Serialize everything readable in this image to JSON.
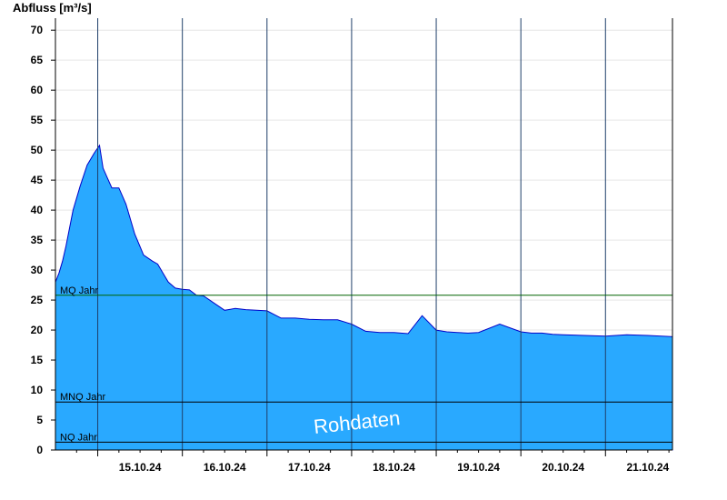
{
  "chart_data": {
    "type": "area",
    "title": "",
    "ylabel": "Abfluss [m³/s]",
    "xlabel": "",
    "ylim": [
      0,
      72
    ],
    "yticks": [
      0,
      5,
      10,
      15,
      20,
      25,
      30,
      35,
      40,
      45,
      50,
      55,
      60,
      65,
      70
    ],
    "x_range": [
      "14.10.24 12:00",
      "21.10.24 19:00"
    ],
    "x_tick_labels": [
      "15.10.24",
      "16.10.24",
      "17.10.24",
      "18.10.24",
      "19.10.24",
      "20.10.24",
      "21.10.24"
    ],
    "grid": true,
    "fill_color": "#29a9ff",
    "line_color": "#0000c8",
    "series": [
      {
        "x": [
          "14.10.24 12:00",
          "14.10.24 13:00",
          "14.10.24 14:00",
          "14.10.24 15:00",
          "14.10.24 17:00",
          "14.10.24 19:00",
          "14.10.24 21:00",
          "14.10.24 23:00",
          "15.10.24 00:30",
          "15.10.24 01:30",
          "15.10.24 03:00",
          "15.10.24 04:00",
          "15.10.24 06:00",
          "15.10.24 08:00",
          "15.10.24 10:30",
          "15.10.24 13:00",
          "15.10.24 15:30",
          "15.10.24 17:00",
          "15.10.24 18:30",
          "15.10.24 20:00",
          "15.10.24 22:00",
          "16.10.24 00:00",
          "16.10.24 02:00",
          "16.10.24 04:00",
          "16.10.24 06:00",
          "16.10.24 09:00",
          "16.10.24 12:00",
          "16.10.24 15:00",
          "16.10.24 18:00",
          "16.10.24 21:00",
          "17.10.24 00:00",
          "17.10.24 04:00",
          "17.10.24 08:00",
          "17.10.24 12:00",
          "17.10.24 16:00",
          "17.10.24 20:00",
          "18.10.24 00:00",
          "18.10.24 04:00",
          "18.10.24 08:00",
          "18.10.24 12:00",
          "18.10.24 16:00",
          "18.10.24 20:00",
          "19.10.24 00:00",
          "19.10.24 03:00",
          "19.10.24 06:00",
          "19.10.24 09:00",
          "19.10.24 12:00",
          "19.10.24 18:00",
          "20.10.24 00:00",
          "20.10.24 03:00",
          "20.10.24 06:00",
          "20.10.24 09:00",
          "20.10.24 12:00",
          "20.10.24 18:00",
          "21.10.24 00:00",
          "21.10.24 06:00",
          "21.10.24 12:00",
          "21.10.24 19:00"
        ],
        "y": [
          28.0,
          29.5,
          31.5,
          34.0,
          40.0,
          44.0,
          47.5,
          49.5,
          50.8,
          47.0,
          45.0,
          43.7,
          43.7,
          41.0,
          36.0,
          32.5,
          31.5,
          31.0,
          29.5,
          28.0,
          27.0,
          26.8,
          26.7,
          25.8,
          25.7,
          24.5,
          23.3,
          23.6,
          23.4,
          23.3,
          23.2,
          22.0,
          22.0,
          21.8,
          21.7,
          21.7,
          21.0,
          19.8,
          19.6,
          19.6,
          19.4,
          22.4,
          20.0,
          19.7,
          19.6,
          19.5,
          19.6,
          21.0,
          19.7,
          19.5,
          19.5,
          19.3,
          19.2,
          19.1,
          19.0,
          19.2,
          19.1,
          18.9
        ]
      }
    ],
    "reference_lines": [
      {
        "label": "MQ Jahr",
        "value": 25.8,
        "color": "#006400"
      },
      {
        "label": "MNQ Jahr",
        "value": 8.0,
        "color": "#000000"
      },
      {
        "label": "NQ Jahr",
        "value": 1.3,
        "color": "#000000"
      }
    ],
    "watermark": "Rohdaten"
  }
}
